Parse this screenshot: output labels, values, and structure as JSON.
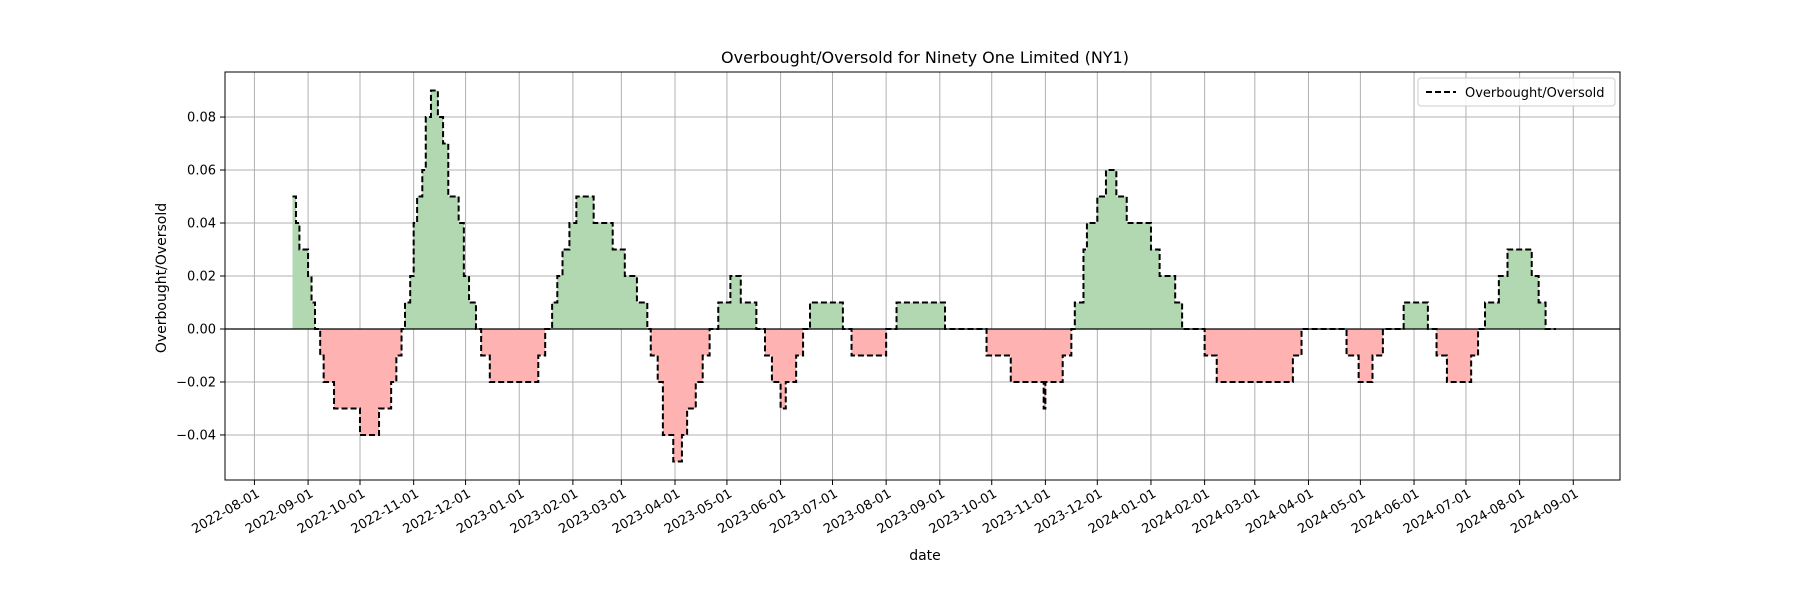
{
  "chart_data": {
    "type": "area",
    "title": "Overbought/Oversold for Ninety One Limited (NY1)",
    "xlabel": "date",
    "ylabel": "Overbought/Oversold",
    "xlim": [
      "2022-07-15",
      "2024-09-28"
    ],
    "ylim": [
      -0.057,
      0.097
    ],
    "x_ticks": [
      "2022-08-01",
      "2022-09-01",
      "2022-10-01",
      "2022-11-01",
      "2022-12-01",
      "2023-01-01",
      "2023-02-01",
      "2023-03-01",
      "2023-04-01",
      "2023-05-01",
      "2023-06-01",
      "2023-07-01",
      "2023-08-01",
      "2023-09-01",
      "2023-10-01",
      "2023-11-01",
      "2023-12-01",
      "2024-01-01",
      "2024-02-01",
      "2024-03-01",
      "2024-04-01",
      "2024-05-01",
      "2024-06-01",
      "2024-07-01",
      "2024-08-01",
      "2024-09-01"
    ],
    "y_ticks": [
      -0.04,
      -0.02,
      0.0,
      0.02,
      0.04,
      0.06,
      0.08
    ],
    "y_tick_labels": [
      "−0.04",
      "−0.02",
      "0.00",
      "0.02",
      "0.04",
      "0.06",
      "0.08"
    ],
    "grid": true,
    "legend": {
      "position": "top-right",
      "entries": [
        "Overbought/Oversold"
      ]
    },
    "colors": {
      "line": "#000000",
      "positive_fill": "#b2d8b2",
      "negative_fill": "#ffb2b2",
      "zero_line": "#000000",
      "grid": "#b0b0b0"
    },
    "series": [
      {
        "name": "Overbought/Oversold",
        "style": "dashed-step",
        "points": [
          [
            "2022-08-23",
            0.05
          ],
          [
            "2022-08-25",
            0.04
          ],
          [
            "2022-08-27",
            0.03
          ],
          [
            "2022-09-01",
            0.02
          ],
          [
            "2022-09-03",
            0.01
          ],
          [
            "2022-09-05",
            0.0
          ],
          [
            "2022-09-08",
            -0.01
          ],
          [
            "2022-09-10",
            -0.02
          ],
          [
            "2022-09-16",
            -0.03
          ],
          [
            "2022-10-01",
            -0.04
          ],
          [
            "2022-10-12",
            -0.03
          ],
          [
            "2022-10-19",
            -0.02
          ],
          [
            "2022-10-22",
            -0.01
          ],
          [
            "2022-10-25",
            0.0
          ],
          [
            "2022-10-27",
            0.01
          ],
          [
            "2022-10-30",
            0.02
          ],
          [
            "2022-11-01",
            0.04
          ],
          [
            "2022-11-03",
            0.05
          ],
          [
            "2022-11-06",
            0.06
          ],
          [
            "2022-11-08",
            0.08
          ],
          [
            "2022-11-11",
            0.09
          ],
          [
            "2022-11-15",
            0.08
          ],
          [
            "2022-11-18",
            0.07
          ],
          [
            "2022-11-21",
            0.05
          ],
          [
            "2022-11-27",
            0.04
          ],
          [
            "2022-11-30",
            0.02
          ],
          [
            "2022-12-03",
            0.01
          ],
          [
            "2022-12-07",
            0.0
          ],
          [
            "2022-12-10",
            -0.01
          ],
          [
            "2022-12-15",
            -0.02
          ],
          [
            "2023-01-12",
            -0.01
          ],
          [
            "2023-01-16",
            0.0
          ],
          [
            "2023-01-20",
            0.01
          ],
          [
            "2023-01-23",
            0.02
          ],
          [
            "2023-01-26",
            0.03
          ],
          [
            "2023-01-30",
            0.04
          ],
          [
            "2023-02-03",
            0.05
          ],
          [
            "2023-02-13",
            0.04
          ],
          [
            "2023-02-24",
            0.03
          ],
          [
            "2023-03-03",
            0.02
          ],
          [
            "2023-03-10",
            0.01
          ],
          [
            "2023-03-16",
            0.0
          ],
          [
            "2023-03-18",
            -0.01
          ],
          [
            "2023-03-22",
            -0.02
          ],
          [
            "2023-03-25",
            -0.04
          ],
          [
            "2023-03-31",
            -0.05
          ],
          [
            "2023-04-05",
            -0.04
          ],
          [
            "2023-04-08",
            -0.03
          ],
          [
            "2023-04-13",
            -0.02
          ],
          [
            "2023-04-17",
            -0.01
          ],
          [
            "2023-04-21",
            0.0
          ],
          [
            "2023-04-26",
            0.01
          ],
          [
            "2023-05-03",
            0.02
          ],
          [
            "2023-05-09",
            0.01
          ],
          [
            "2023-05-18",
            0.0
          ],
          [
            "2023-05-23",
            -0.01
          ],
          [
            "2023-05-27",
            -0.02
          ],
          [
            "2023-06-01",
            -0.03
          ],
          [
            "2023-06-04",
            -0.02
          ],
          [
            "2023-06-10",
            -0.01
          ],
          [
            "2023-06-14",
            0.0
          ],
          [
            "2023-06-18",
            0.01
          ],
          [
            "2023-07-07",
            0.0
          ],
          [
            "2023-07-12",
            -0.01
          ],
          [
            "2023-08-01",
            0.0
          ],
          [
            "2023-08-07",
            0.01
          ],
          [
            "2023-09-04",
            0.0
          ],
          [
            "2023-09-28",
            -0.01
          ],
          [
            "2023-10-12",
            -0.02
          ],
          [
            "2023-10-31",
            -0.03
          ],
          [
            "2023-11-01",
            -0.02
          ],
          [
            "2023-11-11",
            -0.01
          ],
          [
            "2023-11-16",
            0.0
          ],
          [
            "2023-11-18",
            0.01
          ],
          [
            "2023-11-23",
            0.03
          ],
          [
            "2023-11-25",
            0.04
          ],
          [
            "2023-12-01",
            0.05
          ],
          [
            "2023-12-06",
            0.06
          ],
          [
            "2023-12-12",
            0.05
          ],
          [
            "2023-12-18",
            0.04
          ],
          [
            "2024-01-01",
            0.03
          ],
          [
            "2024-01-06",
            0.02
          ],
          [
            "2024-01-15",
            0.01
          ],
          [
            "2024-01-19",
            0.0
          ],
          [
            "2024-02-01",
            -0.01
          ],
          [
            "2024-02-08",
            -0.02
          ],
          [
            "2024-03-23",
            -0.01
          ],
          [
            "2024-03-28",
            0.0
          ],
          [
            "2024-04-23",
            -0.01
          ],
          [
            "2024-04-30",
            -0.02
          ],
          [
            "2024-05-08",
            -0.01
          ],
          [
            "2024-05-14",
            0.0
          ],
          [
            "2024-05-26",
            0.01
          ],
          [
            "2024-06-09",
            0.0
          ],
          [
            "2024-06-14",
            -0.01
          ],
          [
            "2024-06-20",
            -0.02
          ],
          [
            "2024-07-04",
            -0.01
          ],
          [
            "2024-07-08",
            0.0
          ],
          [
            "2024-07-12",
            0.01
          ],
          [
            "2024-07-20",
            0.02
          ],
          [
            "2024-07-25",
            0.03
          ],
          [
            "2024-08-08",
            0.02
          ],
          [
            "2024-08-12",
            0.01
          ],
          [
            "2024-08-16",
            0.0
          ],
          [
            "2024-08-22",
            0.0
          ]
        ]
      }
    ]
  }
}
